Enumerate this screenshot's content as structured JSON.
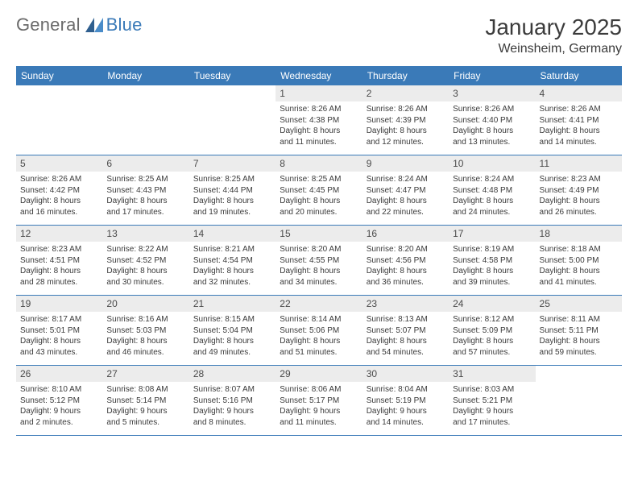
{
  "logo": {
    "text_general": "General",
    "text_blue": "Blue"
  },
  "title": "January 2025",
  "location": "Weinsheim, Germany",
  "colors": {
    "header_bg": "#3a7ab8",
    "header_text": "#ffffff",
    "daynum_bg": "#ececec",
    "daynum_text": "#4a4a4a",
    "body_text": "#3a3a3a",
    "border": "#3a7ab8",
    "logo_gray": "#6a6a6a",
    "logo_blue": "#3a7ab8"
  },
  "weekday_labels": [
    "Sunday",
    "Monday",
    "Tuesday",
    "Wednesday",
    "Thursday",
    "Friday",
    "Saturday"
  ],
  "weeks": [
    [
      {
        "empty": true
      },
      {
        "empty": true
      },
      {
        "empty": true
      },
      {
        "day": "1",
        "sunrise": "Sunrise: 8:26 AM",
        "sunset": "Sunset: 4:38 PM",
        "daylight1": "Daylight: 8 hours",
        "daylight2": "and 11 minutes."
      },
      {
        "day": "2",
        "sunrise": "Sunrise: 8:26 AM",
        "sunset": "Sunset: 4:39 PM",
        "daylight1": "Daylight: 8 hours",
        "daylight2": "and 12 minutes."
      },
      {
        "day": "3",
        "sunrise": "Sunrise: 8:26 AM",
        "sunset": "Sunset: 4:40 PM",
        "daylight1": "Daylight: 8 hours",
        "daylight2": "and 13 minutes."
      },
      {
        "day": "4",
        "sunrise": "Sunrise: 8:26 AM",
        "sunset": "Sunset: 4:41 PM",
        "daylight1": "Daylight: 8 hours",
        "daylight2": "and 14 minutes."
      }
    ],
    [
      {
        "day": "5",
        "sunrise": "Sunrise: 8:26 AM",
        "sunset": "Sunset: 4:42 PM",
        "daylight1": "Daylight: 8 hours",
        "daylight2": "and 16 minutes."
      },
      {
        "day": "6",
        "sunrise": "Sunrise: 8:25 AM",
        "sunset": "Sunset: 4:43 PM",
        "daylight1": "Daylight: 8 hours",
        "daylight2": "and 17 minutes."
      },
      {
        "day": "7",
        "sunrise": "Sunrise: 8:25 AM",
        "sunset": "Sunset: 4:44 PM",
        "daylight1": "Daylight: 8 hours",
        "daylight2": "and 19 minutes."
      },
      {
        "day": "8",
        "sunrise": "Sunrise: 8:25 AM",
        "sunset": "Sunset: 4:45 PM",
        "daylight1": "Daylight: 8 hours",
        "daylight2": "and 20 minutes."
      },
      {
        "day": "9",
        "sunrise": "Sunrise: 8:24 AM",
        "sunset": "Sunset: 4:47 PM",
        "daylight1": "Daylight: 8 hours",
        "daylight2": "and 22 minutes."
      },
      {
        "day": "10",
        "sunrise": "Sunrise: 8:24 AM",
        "sunset": "Sunset: 4:48 PM",
        "daylight1": "Daylight: 8 hours",
        "daylight2": "and 24 minutes."
      },
      {
        "day": "11",
        "sunrise": "Sunrise: 8:23 AM",
        "sunset": "Sunset: 4:49 PM",
        "daylight1": "Daylight: 8 hours",
        "daylight2": "and 26 minutes."
      }
    ],
    [
      {
        "day": "12",
        "sunrise": "Sunrise: 8:23 AM",
        "sunset": "Sunset: 4:51 PM",
        "daylight1": "Daylight: 8 hours",
        "daylight2": "and 28 minutes."
      },
      {
        "day": "13",
        "sunrise": "Sunrise: 8:22 AM",
        "sunset": "Sunset: 4:52 PM",
        "daylight1": "Daylight: 8 hours",
        "daylight2": "and 30 minutes."
      },
      {
        "day": "14",
        "sunrise": "Sunrise: 8:21 AM",
        "sunset": "Sunset: 4:54 PM",
        "daylight1": "Daylight: 8 hours",
        "daylight2": "and 32 minutes."
      },
      {
        "day": "15",
        "sunrise": "Sunrise: 8:20 AM",
        "sunset": "Sunset: 4:55 PM",
        "daylight1": "Daylight: 8 hours",
        "daylight2": "and 34 minutes."
      },
      {
        "day": "16",
        "sunrise": "Sunrise: 8:20 AM",
        "sunset": "Sunset: 4:56 PM",
        "daylight1": "Daylight: 8 hours",
        "daylight2": "and 36 minutes."
      },
      {
        "day": "17",
        "sunrise": "Sunrise: 8:19 AM",
        "sunset": "Sunset: 4:58 PM",
        "daylight1": "Daylight: 8 hours",
        "daylight2": "and 39 minutes."
      },
      {
        "day": "18",
        "sunrise": "Sunrise: 8:18 AM",
        "sunset": "Sunset: 5:00 PM",
        "daylight1": "Daylight: 8 hours",
        "daylight2": "and 41 minutes."
      }
    ],
    [
      {
        "day": "19",
        "sunrise": "Sunrise: 8:17 AM",
        "sunset": "Sunset: 5:01 PM",
        "daylight1": "Daylight: 8 hours",
        "daylight2": "and 43 minutes."
      },
      {
        "day": "20",
        "sunrise": "Sunrise: 8:16 AM",
        "sunset": "Sunset: 5:03 PM",
        "daylight1": "Daylight: 8 hours",
        "daylight2": "and 46 minutes."
      },
      {
        "day": "21",
        "sunrise": "Sunrise: 8:15 AM",
        "sunset": "Sunset: 5:04 PM",
        "daylight1": "Daylight: 8 hours",
        "daylight2": "and 49 minutes."
      },
      {
        "day": "22",
        "sunrise": "Sunrise: 8:14 AM",
        "sunset": "Sunset: 5:06 PM",
        "daylight1": "Daylight: 8 hours",
        "daylight2": "and 51 minutes."
      },
      {
        "day": "23",
        "sunrise": "Sunrise: 8:13 AM",
        "sunset": "Sunset: 5:07 PM",
        "daylight1": "Daylight: 8 hours",
        "daylight2": "and 54 minutes."
      },
      {
        "day": "24",
        "sunrise": "Sunrise: 8:12 AM",
        "sunset": "Sunset: 5:09 PM",
        "daylight1": "Daylight: 8 hours",
        "daylight2": "and 57 minutes."
      },
      {
        "day": "25",
        "sunrise": "Sunrise: 8:11 AM",
        "sunset": "Sunset: 5:11 PM",
        "daylight1": "Daylight: 8 hours",
        "daylight2": "and 59 minutes."
      }
    ],
    [
      {
        "day": "26",
        "sunrise": "Sunrise: 8:10 AM",
        "sunset": "Sunset: 5:12 PM",
        "daylight1": "Daylight: 9 hours",
        "daylight2": "and 2 minutes."
      },
      {
        "day": "27",
        "sunrise": "Sunrise: 8:08 AM",
        "sunset": "Sunset: 5:14 PM",
        "daylight1": "Daylight: 9 hours",
        "daylight2": "and 5 minutes."
      },
      {
        "day": "28",
        "sunrise": "Sunrise: 8:07 AM",
        "sunset": "Sunset: 5:16 PM",
        "daylight1": "Daylight: 9 hours",
        "daylight2": "and 8 minutes."
      },
      {
        "day": "29",
        "sunrise": "Sunrise: 8:06 AM",
        "sunset": "Sunset: 5:17 PM",
        "daylight1": "Daylight: 9 hours",
        "daylight2": "and 11 minutes."
      },
      {
        "day": "30",
        "sunrise": "Sunrise: 8:04 AM",
        "sunset": "Sunset: 5:19 PM",
        "daylight1": "Daylight: 9 hours",
        "daylight2": "and 14 minutes."
      },
      {
        "day": "31",
        "sunrise": "Sunrise: 8:03 AM",
        "sunset": "Sunset: 5:21 PM",
        "daylight1": "Daylight: 9 hours",
        "daylight2": "and 17 minutes."
      },
      {
        "empty": true
      }
    ]
  ]
}
